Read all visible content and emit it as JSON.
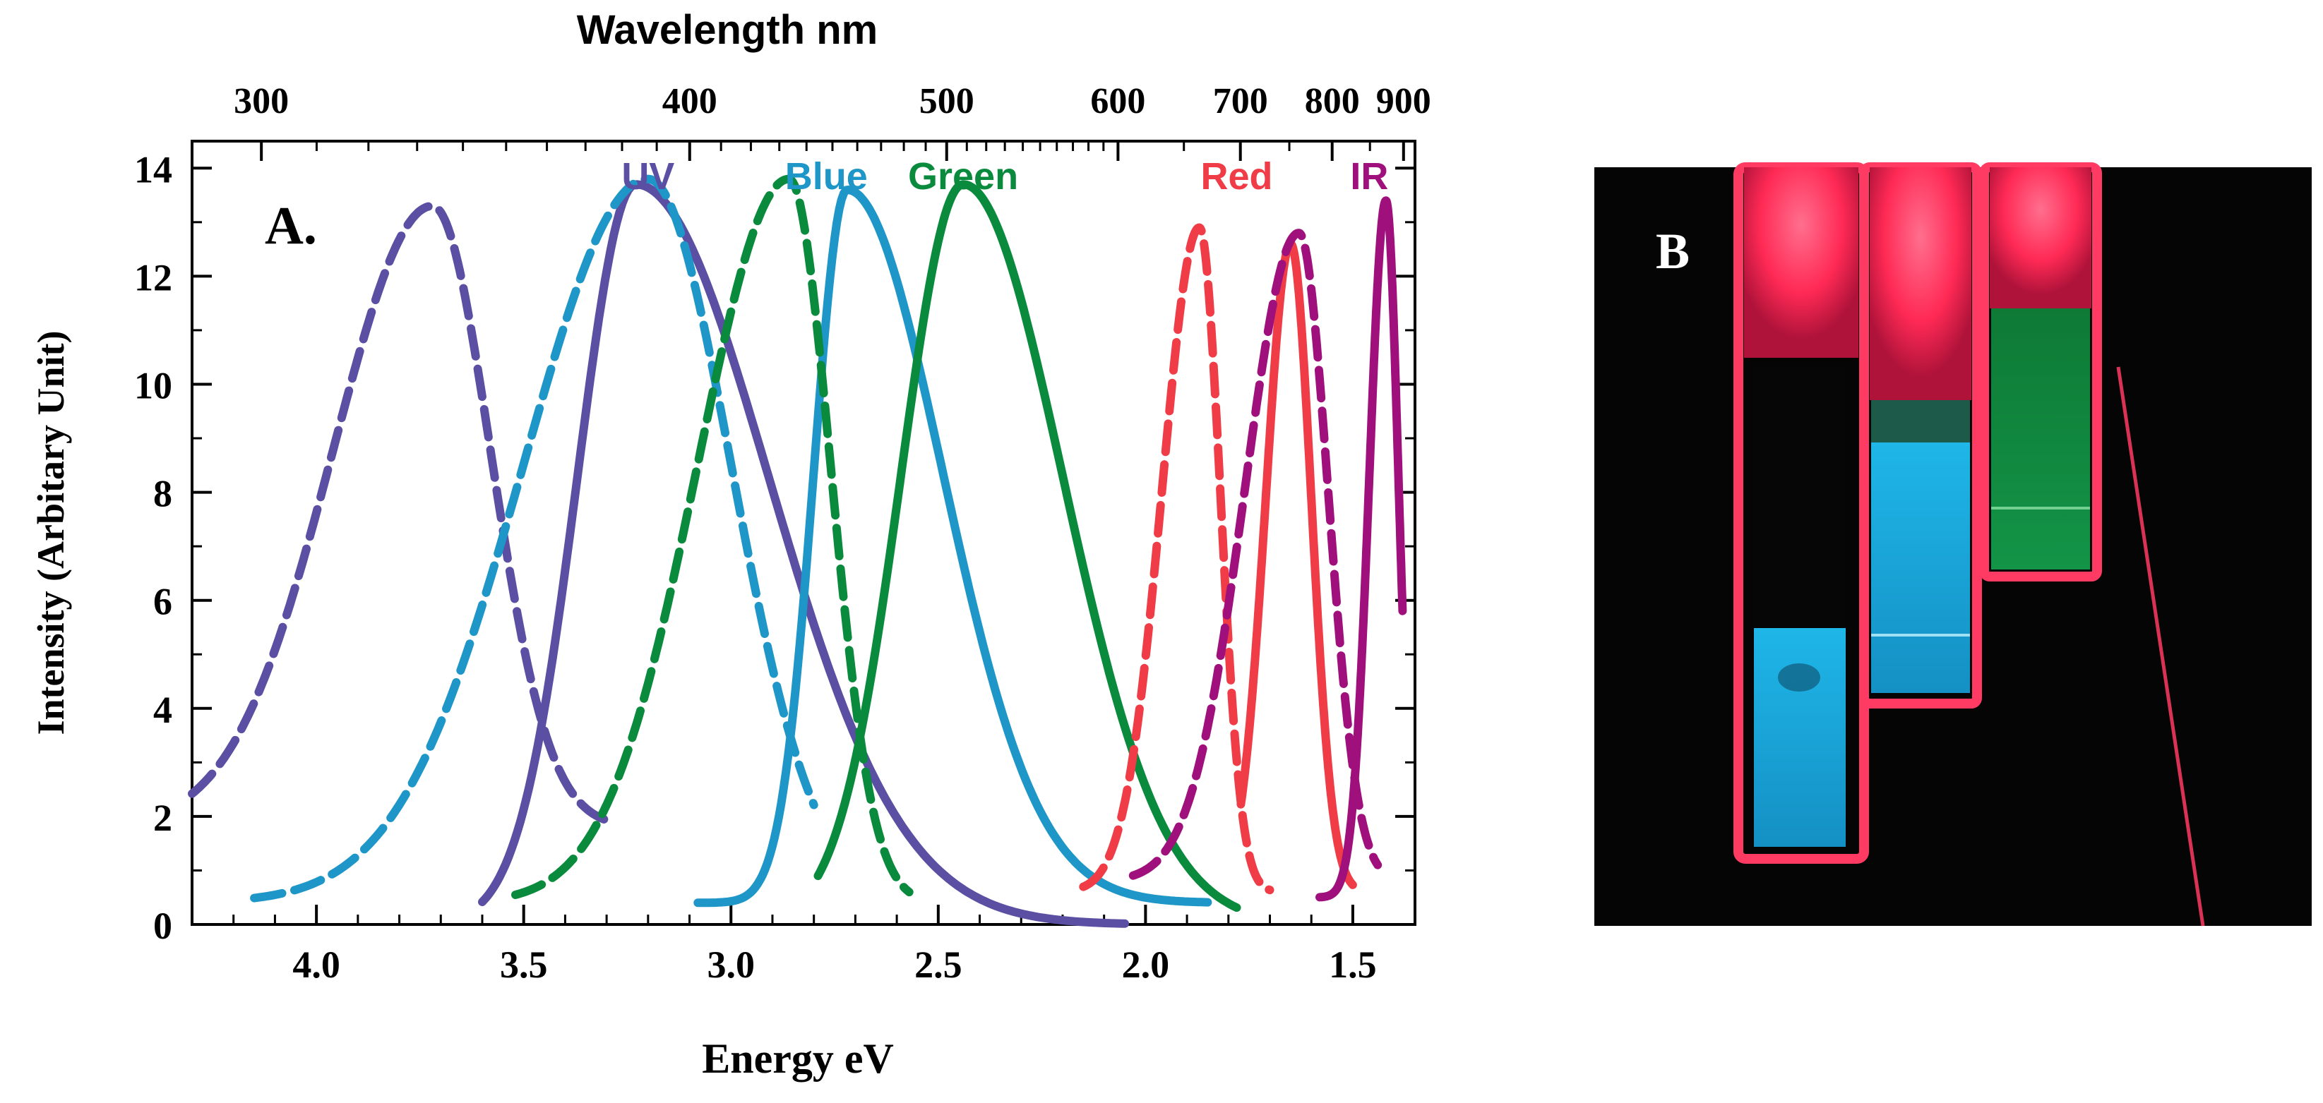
{
  "panel_a": {
    "label": "A.",
    "chart_data": {
      "type": "line",
      "title": "",
      "xlabel": "Energy eV",
      "ylabel": "Intensity (Arbitary Unit)",
      "top_axis_label": "Wavelength nm",
      "xlim": [
        4.3,
        1.35
      ],
      "ylim": [
        0,
        14.5
      ],
      "x_ticks": [
        4.0,
        3.5,
        3.0,
        2.5,
        2.0,
        1.5
      ],
      "x_tick_labels": [
        "4.0",
        "3.5",
        "3.0",
        "2.5",
        "2.0",
        "1.5"
      ],
      "y_ticks": [
        0,
        2,
        4,
        6,
        8,
        10,
        12,
        14
      ],
      "y_tick_labels": [
        "0",
        "2",
        "4",
        "6",
        "8",
        "10",
        "12",
        "14"
      ],
      "top_ticks": [
        300,
        400,
        500,
        600,
        700,
        800,
        900
      ],
      "top_tick_labels": [
        "300",
        "400",
        "500",
        "600",
        "700",
        "800",
        "900"
      ],
      "series": [
        {
          "name": "UV",
          "kind": "absorption",
          "color": "#5a4fa3",
          "dash": "dashed",
          "peak_x": 3.72,
          "amplitude": 13.3,
          "width_left": 0.24,
          "width_right": 0.14,
          "baseline": 1.8,
          "x_range": [
            4.3,
            3.3
          ]
        },
        {
          "name": "UV",
          "kind": "emission",
          "color": "#5a4fa3",
          "dash": "solid",
          "peak_x": 3.23,
          "amplitude": 13.7,
          "width_left": 0.14,
          "width_right": 0.32,
          "baseline": 0,
          "x_range": [
            3.6,
            2.05
          ]
        },
        {
          "name": "Blue",
          "kind": "absorption",
          "color": "#1e96c8",
          "dash": "dashed",
          "peak_x": 3.2,
          "amplitude": 13.8,
          "width_left": 0.3,
          "width_right": 0.2,
          "baseline": 0.4,
          "x_range": [
            4.15,
            2.8
          ]
        },
        {
          "name": "Blue",
          "kind": "emission",
          "color": "#1e96c8",
          "dash": "solid",
          "peak_x": 2.72,
          "amplitude": 13.6,
          "width_left": 0.08,
          "width_right": 0.23,
          "baseline": 0.4,
          "x_range": [
            3.08,
            1.85
          ]
        },
        {
          "name": "Green",
          "kind": "absorption",
          "color": "#0a8a3c",
          "dash": "dashed",
          "peak_x": 2.86,
          "amplitude": 13.8,
          "width_left": 0.22,
          "width_right": 0.1,
          "baseline": 0.4,
          "x_range": [
            3.52,
            2.57
          ]
        },
        {
          "name": "Green",
          "kind": "emission",
          "color": "#0a8a3c",
          "dash": "solid",
          "peak_x": 2.44,
          "amplitude": 13.7,
          "width_left": 0.15,
          "width_right": 0.24,
          "baseline": 0,
          "x_range": [
            2.79,
            1.78
          ]
        },
        {
          "name": "Red",
          "kind": "absorption",
          "color": "#f03c46",
          "dash": "dashed",
          "peak_x": 1.87,
          "amplitude": 12.9,
          "width_left": 0.09,
          "width_right": 0.05,
          "baseline": 0.6,
          "x_range": [
            2.15,
            1.7
          ]
        },
        {
          "name": "Red",
          "kind": "emission",
          "color": "#f03c46",
          "dash": "solid",
          "peak_x": 1.65,
          "amplitude": 12.6,
          "width_left": 0.06,
          "width_right": 0.05,
          "baseline": 0.6,
          "x_range": [
            1.77,
            1.5
          ]
        },
        {
          "name": "IR",
          "kind": "absorption",
          "color": "#a0107d",
          "dash": "dashed",
          "peak_x": 1.63,
          "amplitude": 12.8,
          "width_left": 0.13,
          "width_right": 0.07,
          "baseline": 0.8,
          "x_range": [
            2.03,
            1.44
          ]
        },
        {
          "name": "IR",
          "kind": "emission",
          "color": "#a0107d",
          "dash": "solid",
          "peak_x": 1.42,
          "amplitude": 13.4,
          "width_left": 0.04,
          "width_right": 0.03,
          "baseline": 0.5,
          "x_range": [
            1.58,
            1.38
          ]
        }
      ],
      "annotations": [
        {
          "text": "UV",
          "color": "#5a4fa3"
        },
        {
          "text": "Blue",
          "color": "#1e96c8"
        },
        {
          "text": "Green",
          "color": "#0a8a3c"
        },
        {
          "text": "Red",
          "color": "#f03c46"
        },
        {
          "text": "IR",
          "color": "#a0107d"
        }
      ]
    }
  },
  "panel_b": {
    "label": "B",
    "description_colors": {
      "background": "#050505",
      "red_glow": "#ff2a55",
      "cyan": "#19b4e6",
      "green": "#0f8a3a"
    }
  }
}
